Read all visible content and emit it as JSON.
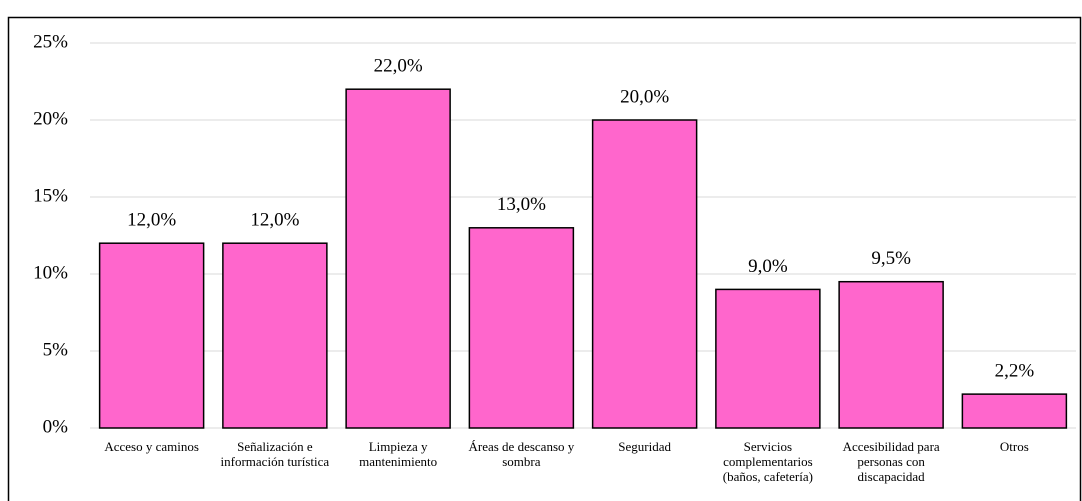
{
  "chart_data": {
    "type": "bar",
    "categories": [
      "Acceso y caminos",
      "Señalización e información turística",
      "Limpieza y mantenimiento",
      "Áreas de descanso y sombra",
      "Seguridad",
      "Servicios complementarios (baños, cafetería)",
      "Accesibilidad para personas con discapacidad",
      "Otros"
    ],
    "values": [
      12.0,
      12.0,
      22.0,
      13.0,
      20.0,
      9.0,
      9.5,
      2.2
    ],
    "value_labels": [
      "12,0%",
      "12,0%",
      "22,0%",
      "13,0%",
      "20,0%",
      "9,0%",
      "9,5%",
      "2,2%"
    ],
    "color": "#ff66cc",
    "ylim": [
      0,
      25
    ],
    "yticks": [
      {
        "value": 0,
        "label": "0%"
      },
      {
        "value": 5,
        "label": "5%"
      },
      {
        "value": 10,
        "label": "10%"
      },
      {
        "value": 15,
        "label": "15%"
      },
      {
        "value": 20,
        "label": "20%"
      },
      {
        "value": 25,
        "label": "25%"
      }
    ],
    "grid": true
  }
}
